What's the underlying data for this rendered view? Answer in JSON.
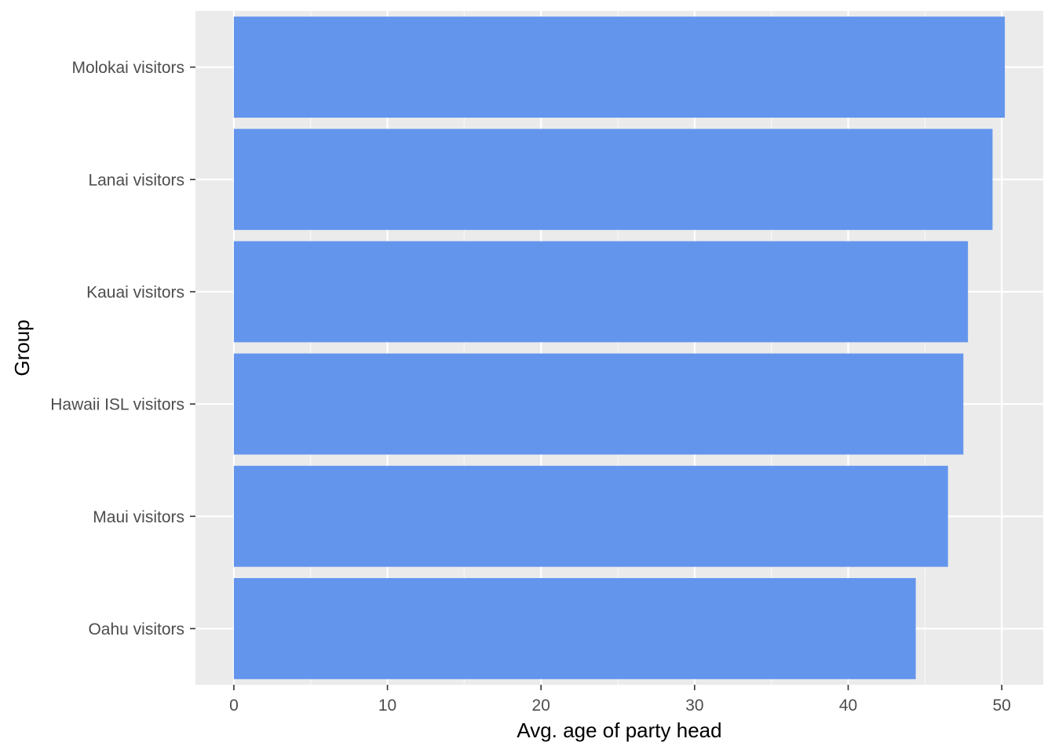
{
  "chart_data": {
    "type": "bar",
    "orientation": "horizontal",
    "categories": [
      "Molokai visitors",
      "Lanai visitors",
      "Kauai visitors",
      "Hawaii ISL visitors",
      "Maui visitors",
      "Oahu visitors"
    ],
    "values": [
      50.2,
      49.4,
      47.8,
      47.5,
      46.5,
      44.4
    ],
    "xlabel": "Avg. age of party head",
    "ylabel": "Group",
    "xlim": [
      -2.5,
      52.7
    ],
    "xticks": [
      0,
      10,
      20,
      30,
      40,
      50
    ],
    "grid": true,
    "legend": "none"
  },
  "colors": {
    "bar": "#6495ED",
    "panel": "#EBEBEB",
    "grid_major": "#FFFFFF",
    "grid_minor": "#F7F7F7",
    "tick": "#333333",
    "tick_text": "#4D4D4D"
  }
}
